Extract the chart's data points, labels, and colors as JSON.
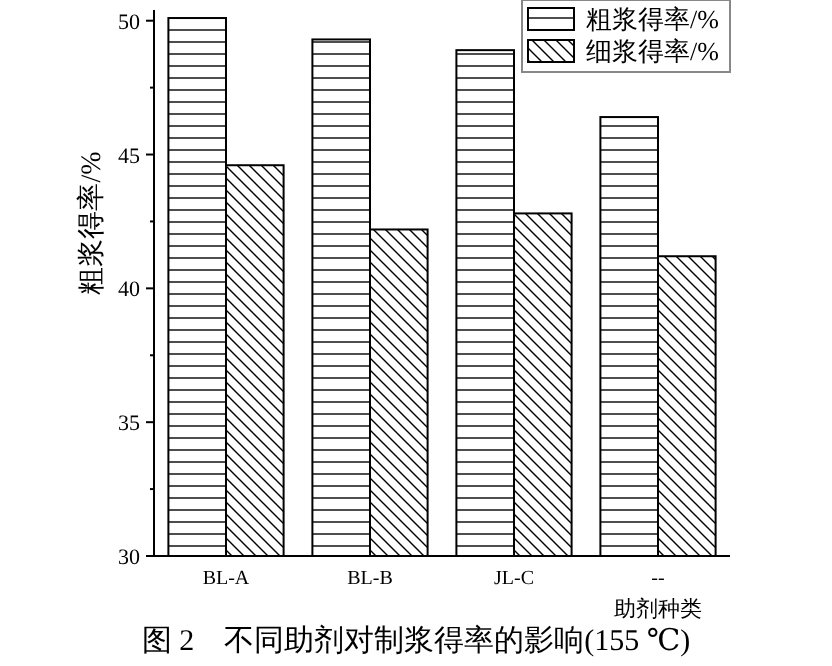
{
  "chart_data": {
    "type": "bar",
    "categories": [
      "BL-A",
      "BL-B",
      "JL-C",
      "--"
    ],
    "series": [
      {
        "name": "粗浆得率/%",
        "color": "#000000",
        "values": [
          50.1,
          49.3,
          48.9,
          46.4
        ]
      },
      {
        "name": "细浆得率/%",
        "color": "#000000",
        "values": [
          44.6,
          42.2,
          42.8,
          41.2
        ]
      }
    ],
    "ylabel": "粗浆得率/%",
    "xlabel": "助剂种类",
    "ylim": [
      30,
      50.4
    ],
    "yticks": [
      30,
      35,
      40,
      45,
      50
    ],
    "legend": "top right",
    "grid": false,
    "annotations": [
      "图 2　不同助剂对制浆得率的影响(155 ℃)"
    ]
  }
}
